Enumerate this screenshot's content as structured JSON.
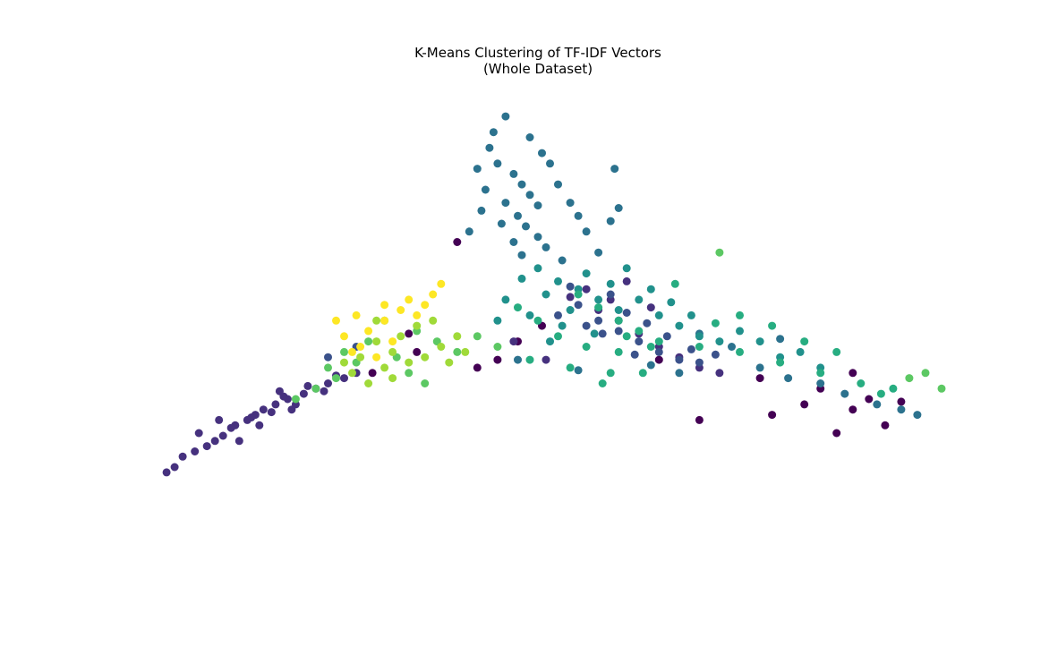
{
  "chart_data": {
    "type": "scatter",
    "title": "K-Means Clustering of TF-IDF Vectors",
    "subtitle": "(Whole Dataset)",
    "xlabel": "",
    "ylabel": "",
    "axes_visible": false,
    "grid": false,
    "legend": "none",
    "xlim": [
      -1.0,
      1.0
    ],
    "ylim": [
      -1.0,
      1.0
    ],
    "colormap": "viridis",
    "series": [
      {
        "cluster": 0,
        "color": "#440154",
        "points": [
          [
            -0.2,
            0.4
          ],
          [
            -0.05,
            0.02
          ],
          [
            0.01,
            0.08
          ],
          [
            -0.1,
            -0.05
          ],
          [
            -0.3,
            -0.02
          ],
          [
            -0.41,
            -0.1
          ],
          [
            0.3,
            -0.05
          ],
          [
            0.55,
            -0.12
          ],
          [
            0.7,
            -0.16
          ],
          [
            0.82,
            -0.2
          ],
          [
            0.78,
            -0.24
          ],
          [
            0.86,
            -0.3
          ],
          [
            0.74,
            -0.33
          ],
          [
            0.78,
            -0.1
          ],
          [
            0.58,
            -0.26
          ],
          [
            0.4,
            -0.28
          ],
          [
            -0.15,
            -0.08
          ],
          [
            -0.32,
            0.05
          ],
          [
            0.9,
            -0.21
          ],
          [
            0.66,
            -0.22
          ]
        ]
      },
      {
        "cluster": 1,
        "color": "#46317e",
        "points": [
          [
            -0.85,
            -0.4
          ],
          [
            -0.8,
            -0.36
          ],
          [
            -0.78,
            -0.34
          ],
          [
            -0.75,
            -0.3
          ],
          [
            -0.72,
            -0.28
          ],
          [
            -0.7,
            -0.26
          ],
          [
            -0.68,
            -0.24
          ],
          [
            -0.65,
            -0.22
          ],
          [
            -0.62,
            -0.2
          ],
          [
            -0.58,
            -0.18
          ],
          [
            -0.55,
            -0.16
          ],
          [
            -0.52,
            -0.14
          ],
          [
            -0.48,
            -0.12
          ],
          [
            -0.45,
            -0.1
          ],
          [
            -0.82,
            -0.38
          ],
          [
            -0.76,
            -0.31
          ],
          [
            -0.71,
            -0.27
          ],
          [
            -0.66,
            -0.25
          ],
          [
            -0.63,
            -0.19
          ],
          [
            -0.6,
            -0.22
          ],
          [
            -0.57,
            -0.15
          ],
          [
            -0.53,
            -0.17
          ],
          [
            -0.5,
            -0.11
          ],
          [
            -0.9,
            -0.46
          ],
          [
            -0.92,
            -0.48
          ],
          [
            -0.88,
            -0.42
          ],
          [
            -0.74,
            -0.36
          ],
          [
            -0.69,
            -0.3
          ],
          [
            -0.64,
            -0.17
          ],
          [
            -0.61,
            -0.24
          ],
          [
            -0.79,
            -0.28
          ],
          [
            -0.84,
            -0.33
          ],
          [
            -0.06,
            0.02
          ],
          [
            0.02,
            -0.05
          ],
          [
            0.2,
            0.1
          ],
          [
            0.25,
            0.05
          ],
          [
            0.3,
            0.0
          ],
          [
            0.35,
            -0.04
          ],
          [
            0.18,
            0.18
          ],
          [
            0.12,
            0.22
          ],
          [
            0.08,
            0.19
          ],
          [
            0.4,
            -0.08
          ],
          [
            0.45,
            -0.1
          ],
          [
            0.22,
            0.25
          ],
          [
            0.28,
            0.15
          ],
          [
            0.15,
            0.14
          ]
        ]
      },
      {
        "cluster": 2,
        "color": "#3b528b",
        "points": [
          [
            0.05,
            0.12
          ],
          [
            0.1,
            0.16
          ],
          [
            0.15,
            0.1
          ],
          [
            0.2,
            0.06
          ],
          [
            0.25,
            0.02
          ],
          [
            0.3,
            -0.02
          ],
          [
            0.35,
            -0.05
          ],
          [
            0.4,
            -0.06
          ],
          [
            0.22,
            0.13
          ],
          [
            0.18,
            0.2
          ],
          [
            0.12,
            0.08
          ],
          [
            0.27,
            0.09
          ],
          [
            0.32,
            0.04
          ],
          [
            0.38,
            -0.01
          ],
          [
            0.44,
            -0.03
          ],
          [
            -0.52,
            -0.04
          ],
          [
            -0.45,
            0.0
          ],
          [
            0.08,
            0.23
          ],
          [
            0.16,
            0.05
          ],
          [
            0.24,
            -0.03
          ]
        ]
      },
      {
        "cluster": 3,
        "color": "#2c728e",
        "points": [
          [
            -0.08,
            0.88
          ],
          [
            -0.02,
            0.8
          ],
          [
            -0.12,
            0.76
          ],
          [
            -0.1,
            0.7
          ],
          [
            -0.06,
            0.66
          ],
          [
            -0.04,
            0.62
          ],
          [
            -0.02,
            0.58
          ],
          [
            0.0,
            0.54
          ],
          [
            -0.08,
            0.55
          ],
          [
            -0.05,
            0.5
          ],
          [
            -0.03,
            0.46
          ],
          [
            0.0,
            0.42
          ],
          [
            0.02,
            0.38
          ],
          [
            -0.06,
            0.4
          ],
          [
            -0.09,
            0.47
          ],
          [
            -0.13,
            0.6
          ],
          [
            -0.15,
            0.68
          ],
          [
            0.05,
            0.62
          ],
          [
            0.08,
            0.55
          ],
          [
            0.1,
            0.5
          ],
          [
            0.03,
            0.7
          ],
          [
            -0.11,
            0.82
          ],
          [
            0.12,
            0.44
          ],
          [
            0.15,
            0.36
          ],
          [
            0.18,
            0.48
          ],
          [
            -0.14,
            0.52
          ],
          [
            -0.17,
            0.44
          ],
          [
            0.2,
            0.53
          ],
          [
            0.19,
            0.68
          ],
          [
            0.01,
            0.74
          ],
          [
            -0.04,
            0.35
          ],
          [
            0.06,
            0.33
          ],
          [
            0.4,
            0.05
          ],
          [
            0.48,
            0.0
          ],
          [
            0.55,
            -0.08
          ],
          [
            0.62,
            -0.12
          ],
          [
            0.7,
            -0.14
          ],
          [
            0.76,
            -0.18
          ],
          [
            0.84,
            -0.22
          ],
          [
            0.9,
            -0.24
          ],
          [
            0.94,
            -0.26
          ],
          [
            0.35,
            -0.1
          ],
          [
            0.6,
            0.03
          ],
          [
            0.28,
            -0.07
          ],
          [
            -0.05,
            -0.05
          ],
          [
            0.1,
            -0.09
          ]
        ]
      },
      {
        "cluster": 4,
        "color": "#21918c",
        "points": [
          [
            0.0,
            0.3
          ],
          [
            0.05,
            0.25
          ],
          [
            0.1,
            0.22
          ],
          [
            0.15,
            0.18
          ],
          [
            0.2,
            0.14
          ],
          [
            0.02,
            0.2
          ],
          [
            0.08,
            0.14
          ],
          [
            -0.04,
            0.26
          ],
          [
            0.12,
            0.28
          ],
          [
            0.18,
            0.24
          ],
          [
            0.25,
            0.18
          ],
          [
            0.3,
            0.12
          ],
          [
            0.35,
            0.08
          ],
          [
            0.4,
            0.04
          ],
          [
            0.45,
            0.02
          ],
          [
            -0.08,
            0.18
          ],
          [
            -0.02,
            0.12
          ],
          [
            0.06,
            0.08
          ],
          [
            0.22,
            0.3
          ],
          [
            0.28,
            0.22
          ],
          [
            0.5,
            0.06
          ],
          [
            0.55,
            0.02
          ],
          [
            0.6,
            -0.04
          ],
          [
            0.65,
            -0.02
          ],
          [
            0.7,
            -0.08
          ],
          [
            0.14,
            0.05
          ],
          [
            0.03,
            0.02
          ],
          [
            -0.1,
            0.1
          ],
          [
            0.33,
            0.17
          ],
          [
            0.38,
            0.12
          ]
        ]
      },
      {
        "cluster": 5,
        "color": "#27ad81",
        "points": [
          [
            0.1,
            0.2
          ],
          [
            0.15,
            0.15
          ],
          [
            0.2,
            0.1
          ],
          [
            0.25,
            0.06
          ],
          [
            0.05,
            0.04
          ],
          [
            0.0,
            0.1
          ],
          [
            -0.05,
            0.15
          ],
          [
            0.12,
            0.0
          ],
          [
            0.2,
            -0.02
          ],
          [
            0.3,
            0.02
          ],
          [
            0.4,
            0.0
          ],
          [
            0.5,
            -0.02
          ],
          [
            0.6,
            -0.06
          ],
          [
            0.7,
            -0.1
          ],
          [
            0.8,
            -0.14
          ],
          [
            0.85,
            -0.18
          ],
          [
            0.88,
            -0.16
          ],
          [
            0.18,
            -0.1
          ],
          [
            0.16,
            -0.14
          ],
          [
            0.26,
            -0.1
          ],
          [
            0.08,
            -0.08
          ],
          [
            -0.02,
            -0.05
          ],
          [
            0.5,
            0.12
          ],
          [
            0.44,
            0.09
          ],
          [
            0.34,
            0.24
          ],
          [
            0.28,
            0.0
          ],
          [
            0.58,
            0.08
          ],
          [
            0.66,
            0.02
          ],
          [
            0.74,
            -0.02
          ],
          [
            0.22,
            0.04
          ]
        ]
      },
      {
        "cluster": 6,
        "color": "#5cc863",
        "points": [
          [
            -0.38,
            0.1
          ],
          [
            -0.45,
            -0.06
          ],
          [
            -0.5,
            -0.12
          ],
          [
            -0.55,
            -0.16
          ],
          [
            -0.6,
            -0.2
          ],
          [
            -0.42,
            0.02
          ],
          [
            -0.35,
            -0.04
          ],
          [
            -0.3,
            0.06
          ],
          [
            -0.25,
            0.02
          ],
          [
            -0.2,
            -0.02
          ],
          [
            -0.15,
            0.04
          ],
          [
            -0.1,
            0.0
          ],
          [
            -0.32,
            -0.1
          ],
          [
            -0.28,
            -0.14
          ],
          [
            -0.48,
            -0.02
          ],
          [
            -0.52,
            -0.08
          ],
          [
            0.45,
            0.36
          ],
          [
            1.0,
            -0.16
          ],
          [
            0.96,
            -0.1
          ],
          [
            0.92,
            -0.12
          ]
        ]
      },
      {
        "cluster": 7,
        "color": "#a0da39",
        "points": [
          [
            -0.4,
            0.02
          ],
          [
            -0.36,
            -0.02
          ],
          [
            -0.32,
            -0.06
          ],
          [
            -0.28,
            -0.04
          ],
          [
            -0.24,
            0.0
          ],
          [
            -0.2,
            0.04
          ],
          [
            -0.44,
            -0.04
          ],
          [
            -0.38,
            -0.08
          ],
          [
            -0.34,
            0.04
          ],
          [
            -0.3,
            0.08
          ],
          [
            -0.26,
            0.1
          ],
          [
            -0.22,
            -0.06
          ],
          [
            -0.18,
            -0.02
          ],
          [
            -0.46,
            -0.1
          ],
          [
            -0.42,
            -0.14
          ],
          [
            -0.36,
            -0.12
          ],
          [
            -0.48,
            -0.06
          ],
          [
            -0.4,
            0.1
          ]
        ]
      },
      {
        "cluster": 8,
        "color": "#fde725",
        "points": [
          [
            -0.42,
            0.06
          ],
          [
            -0.38,
            0.1
          ],
          [
            -0.34,
            0.14
          ],
          [
            -0.3,
            0.12
          ],
          [
            -0.44,
            0.0
          ],
          [
            -0.4,
            -0.04
          ],
          [
            -0.36,
            0.02
          ],
          [
            -0.32,
            0.18
          ],
          [
            -0.46,
            -0.02
          ],
          [
            -0.48,
            0.04
          ],
          [
            -0.28,
            0.16
          ],
          [
            -0.26,
            0.2
          ],
          [
            -0.5,
            0.1
          ],
          [
            -0.24,
            0.24
          ],
          [
            -0.38,
            0.16
          ],
          [
            -0.45,
            0.12
          ]
        ]
      }
    ]
  }
}
